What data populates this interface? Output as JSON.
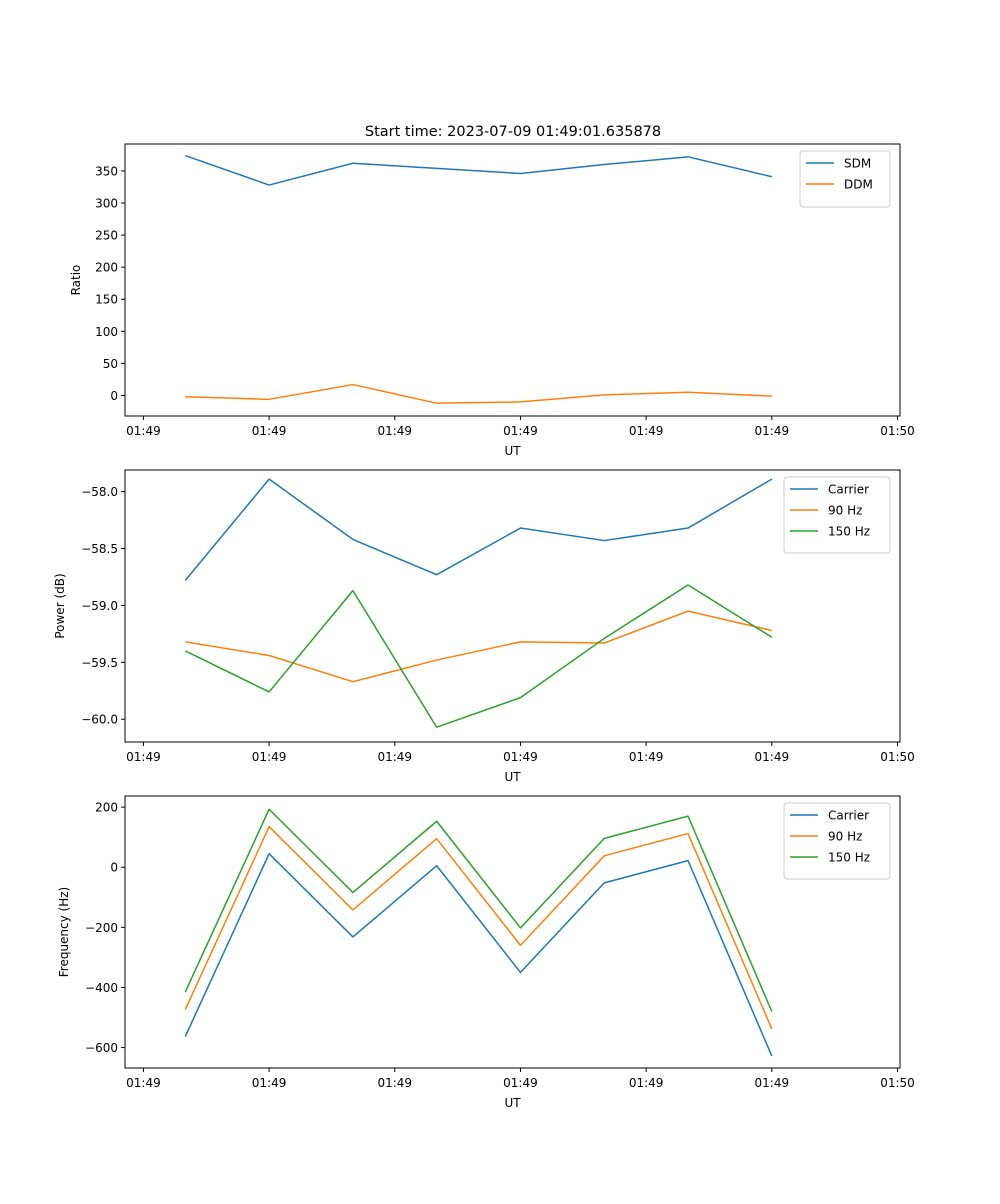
{
  "figure": {
    "title": "Start time: 2023-07-09 01:49:01.635878"
  },
  "chart_data": [
    {
      "type": "line",
      "name": "ratio",
      "title": "Start time: 2023-07-09 01:49:01.635878",
      "xlabel": "UT",
      "ylabel": "Ratio",
      "x_index": [
        1,
        2,
        3,
        4,
        5,
        6,
        7,
        8
      ],
      "xlim": [
        0.28,
        9.53
      ],
      "x_ticks": [
        0.5,
        2,
        3.5,
        5,
        6.5,
        8,
        9.5
      ],
      "x_tick_labels": [
        "01:49",
        "01:49",
        "01:49",
        "01:49",
        "01:49",
        "01:49",
        "01:50"
      ],
      "ylim": [
        -32,
        392
      ],
      "y_ticks": [
        0,
        50,
        100,
        150,
        200,
        250,
        300,
        350
      ],
      "y_tick_labels": [
        "0",
        "50",
        "100",
        "150",
        "200",
        "250",
        "300",
        "350"
      ],
      "legend_position": "top-right",
      "series": [
        {
          "name": "SDM",
          "color": "#1f77b4",
          "values": [
            374,
            328,
            362,
            354,
            346,
            360,
            372,
            341
          ]
        },
        {
          "name": "DDM",
          "color": "#ff7f0e",
          "values": [
            -2,
            -6,
            17,
            -12,
            -10,
            1,
            5,
            -1
          ]
        }
      ]
    },
    {
      "type": "line",
      "name": "power",
      "xlabel": "UT",
      "ylabel": "Power (dB)",
      "x_index": [
        1,
        2,
        3,
        4,
        5,
        6,
        7,
        8
      ],
      "xlim": [
        0.28,
        9.53
      ],
      "x_ticks": [
        0.5,
        2,
        3.5,
        5,
        6.5,
        8,
        9.5
      ],
      "x_tick_labels": [
        "01:49",
        "01:49",
        "01:49",
        "01:49",
        "01:49",
        "01:49",
        "01:50"
      ],
      "ylim": [
        -60.2,
        -57.81
      ],
      "y_ticks": [
        -60.0,
        -59.5,
        -59.0,
        -58.5,
        -58.0
      ],
      "y_tick_labels": [
        "−60.0",
        "−59.5",
        "−59.0",
        "−58.5",
        "−58.0"
      ],
      "legend_position": "top-right",
      "series": [
        {
          "name": "Carrier",
          "color": "#1f77b4",
          "values": [
            -58.78,
            -57.89,
            -58.42,
            -58.73,
            -58.32,
            -58.43,
            -58.32,
            -57.89
          ]
        },
        {
          "name": "90 Hz",
          "color": "#ff7f0e",
          "values": [
            -59.32,
            -59.44,
            -59.67,
            -59.48,
            -59.32,
            -59.33,
            -59.05,
            -59.22
          ]
        },
        {
          "name": "150 Hz",
          "color": "#2ca02c",
          "values": [
            -59.4,
            -59.76,
            -58.87,
            -60.07,
            -59.81,
            -59.29,
            -58.82,
            -59.28
          ]
        }
      ]
    },
    {
      "type": "line",
      "name": "frequency",
      "xlabel": "UT",
      "ylabel": "Frequency (Hz)",
      "x_index": [
        1,
        2,
        3,
        4,
        5,
        6,
        7,
        8
      ],
      "xlim": [
        0.28,
        9.53
      ],
      "x_ticks": [
        0.5,
        2,
        3.5,
        5,
        6.5,
        8,
        9.5
      ],
      "x_tick_labels": [
        "01:49",
        "01:49",
        "01:49",
        "01:49",
        "01:49",
        "01:49",
        "01:50"
      ],
      "ylim": [
        -668,
        237
      ],
      "y_ticks": [
        -600,
        -400,
        -200,
        0,
        200
      ],
      "y_tick_labels": [
        "−600",
        "−400",
        "−200",
        "0",
        "200"
      ],
      "legend_position": "top-right",
      "series": [
        {
          "name": "Carrier",
          "color": "#1f77b4",
          "values": [
            -563,
            45,
            -232,
            5,
            -350,
            -52,
            22,
            -628
          ]
        },
        {
          "name": "90 Hz",
          "color": "#ff7f0e",
          "values": [
            -473,
            135,
            -142,
            95,
            -260,
            38,
            112,
            -538
          ]
        },
        {
          "name": "150 Hz",
          "color": "#2ca02c",
          "values": [
            -415,
            193,
            -84,
            153,
            -202,
            96,
            170,
            -480
          ]
        }
      ]
    }
  ]
}
